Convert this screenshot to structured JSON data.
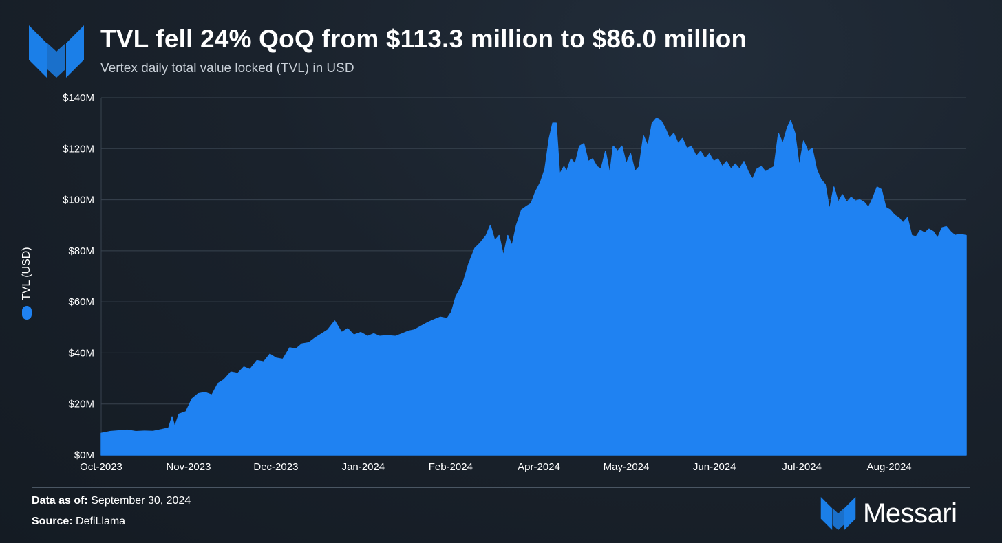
{
  "header": {
    "title": "TVL fell 24% QoQ from $113.3 million to $86.0 million",
    "subtitle": "Vertex daily total value locked (TVL) in USD"
  },
  "colors": {
    "accent": "#1f82f2",
    "logo": "#1b7fe8",
    "grid": "#38434f",
    "axis_text": "#ffffff"
  },
  "legend": {
    "series_label": "TVL (USD)"
  },
  "footer": {
    "date_label": "Data as of:",
    "date_value": "September 30, 2024",
    "source_label": "Source:",
    "source_value": "DefiLlama",
    "brand": "Messari"
  },
  "chart_data": {
    "type": "area",
    "title": "TVL fell 24% QoQ from $113.3 million to $86.0 million",
    "subtitle": "Vertex daily total value locked (TVL) in USD",
    "xlabel": "",
    "ylabel": "TVL (USD)",
    "ylim": [
      0,
      140
    ],
    "y_unit": "millions USD",
    "y_ticks": [
      0,
      20,
      40,
      60,
      80,
      100,
      120,
      140
    ],
    "y_tick_labels": [
      "$0M",
      "$20M",
      "$40M",
      "$60M",
      "$80M",
      "$100M",
      "$120M",
      "$140M"
    ],
    "x_domain": [
      0,
      1
    ],
    "x_ticks": [
      {
        "label": "Oct-2023",
        "pos": 0.0
      },
      {
        "label": "Nov-2023",
        "pos": 0.101
      },
      {
        "label": "Dec-2023",
        "pos": 0.202
      },
      {
        "label": "Jan-2024",
        "pos": 0.303
      },
      {
        "label": "Feb-2024",
        "pos": 0.404
      },
      {
        "label": "Apr-2024",
        "pos": 0.506
      },
      {
        "label": "May-2024",
        "pos": 0.607
      },
      {
        "label": "Jun-2024",
        "pos": 0.709
      },
      {
        "label": "Jul-2024",
        "pos": 0.81
      },
      {
        "label": "Aug-2024",
        "pos": 0.911
      }
    ],
    "series": [
      {
        "name": "TVL (USD)",
        "points": [
          [
            0.0,
            8.5
          ],
          [
            0.01,
            9.2
          ],
          [
            0.02,
            9.5
          ],
          [
            0.03,
            9.8
          ],
          [
            0.04,
            9.2
          ],
          [
            0.05,
            9.4
          ],
          [
            0.06,
            9.3
          ],
          [
            0.07,
            10.0
          ],
          [
            0.078,
            10.6
          ],
          [
            0.082,
            15.0
          ],
          [
            0.085,
            11.0
          ],
          [
            0.09,
            16.0
          ],
          [
            0.098,
            17.0
          ],
          [
            0.105,
            22.0
          ],
          [
            0.112,
            24.0
          ],
          [
            0.12,
            24.5
          ],
          [
            0.128,
            23.5
          ],
          [
            0.135,
            28.0
          ],
          [
            0.142,
            29.5
          ],
          [
            0.15,
            32.5
          ],
          [
            0.158,
            32.0
          ],
          [
            0.165,
            34.5
          ],
          [
            0.172,
            33.5
          ],
          [
            0.18,
            37.0
          ],
          [
            0.188,
            36.5
          ],
          [
            0.195,
            39.5
          ],
          [
            0.202,
            38.0
          ],
          [
            0.21,
            37.5
          ],
          [
            0.218,
            42.0
          ],
          [
            0.225,
            41.5
          ],
          [
            0.232,
            43.5
          ],
          [
            0.24,
            44.0
          ],
          [
            0.248,
            46.0
          ],
          [
            0.255,
            47.5
          ],
          [
            0.262,
            49.0
          ],
          [
            0.27,
            52.5
          ],
          [
            0.278,
            48.0
          ],
          [
            0.285,
            49.5
          ],
          [
            0.292,
            47.0
          ],
          [
            0.3,
            48.0
          ],
          [
            0.308,
            46.5
          ],
          [
            0.315,
            47.5
          ],
          [
            0.322,
            46.5
          ],
          [
            0.33,
            46.8
          ],
          [
            0.34,
            46.5
          ],
          [
            0.348,
            47.5
          ],
          [
            0.355,
            48.5
          ],
          [
            0.362,
            49.0
          ],
          [
            0.37,
            50.5
          ],
          [
            0.378,
            52.0
          ],
          [
            0.385,
            53.0
          ],
          [
            0.392,
            54.0
          ],
          [
            0.4,
            53.5
          ],
          [
            0.405,
            56.0
          ],
          [
            0.41,
            62.0
          ],
          [
            0.418,
            67.0
          ],
          [
            0.425,
            75.0
          ],
          [
            0.432,
            81.0
          ],
          [
            0.438,
            83.0
          ],
          [
            0.445,
            86.0
          ],
          [
            0.45,
            90.0
          ],
          [
            0.455,
            84.0
          ],
          [
            0.46,
            86.0
          ],
          [
            0.465,
            78.0
          ],
          [
            0.47,
            86.0
          ],
          [
            0.475,
            82.0
          ],
          [
            0.48,
            90.0
          ],
          [
            0.486,
            96.0
          ],
          [
            0.492,
            97.5
          ],
          [
            0.497,
            98.5
          ],
          [
            0.502,
            103.0
          ],
          [
            0.508,
            107.0
          ],
          [
            0.513,
            112.0
          ],
          [
            0.518,
            124.0
          ],
          [
            0.522,
            130.0
          ],
          [
            0.526,
            130.0
          ],
          [
            0.53,
            110.0
          ],
          [
            0.535,
            113.0
          ],
          [
            0.538,
            111.0
          ],
          [
            0.543,
            116.0
          ],
          [
            0.548,
            114.0
          ],
          [
            0.553,
            121.0
          ],
          [
            0.558,
            122.0
          ],
          [
            0.563,
            115.0
          ],
          [
            0.568,
            116.0
          ],
          [
            0.573,
            113.0
          ],
          [
            0.578,
            112.0
          ],
          [
            0.583,
            119.0
          ],
          [
            0.588,
            110.0
          ],
          [
            0.592,
            121.0
          ],
          [
            0.597,
            119.0
          ],
          [
            0.602,
            121.0
          ],
          [
            0.607,
            114.0
          ],
          [
            0.612,
            118.0
          ],
          [
            0.617,
            111.0
          ],
          [
            0.622,
            113.0
          ],
          [
            0.627,
            125.0
          ],
          [
            0.632,
            121.0
          ],
          [
            0.637,
            130.0
          ],
          [
            0.642,
            132.0
          ],
          [
            0.647,
            131.0
          ],
          [
            0.652,
            128.0
          ],
          [
            0.657,
            124.0
          ],
          [
            0.662,
            126.0
          ],
          [
            0.667,
            122.0
          ],
          [
            0.672,
            124.0
          ],
          [
            0.677,
            120.0
          ],
          [
            0.682,
            121.0
          ],
          [
            0.688,
            117.0
          ],
          [
            0.693,
            119.0
          ],
          [
            0.698,
            116.0
          ],
          [
            0.703,
            118.0
          ],
          [
            0.708,
            115.0
          ],
          [
            0.713,
            116.0
          ],
          [
            0.718,
            113.0
          ],
          [
            0.723,
            115.0
          ],
          [
            0.728,
            112.0
          ],
          [
            0.733,
            114.0
          ],
          [
            0.738,
            112.0
          ],
          [
            0.743,
            115.0
          ],
          [
            0.748,
            111.0
          ],
          [
            0.753,
            108.0
          ],
          [
            0.758,
            112.0
          ],
          [
            0.763,
            113.0
          ],
          [
            0.768,
            111.0
          ],
          [
            0.773,
            112.0
          ],
          [
            0.778,
            113.0
          ],
          [
            0.783,
            126.0
          ],
          [
            0.788,
            122.0
          ],
          [
            0.793,
            128.0
          ],
          [
            0.797,
            131.0
          ],
          [
            0.802,
            126.0
          ],
          [
            0.807,
            113.0
          ],
          [
            0.812,
            123.0
          ],
          [
            0.817,
            119.0
          ],
          [
            0.822,
            120.0
          ],
          [
            0.827,
            112.0
          ],
          [
            0.832,
            108.0
          ],
          [
            0.837,
            106.0
          ],
          [
            0.842,
            96.0
          ],
          [
            0.847,
            105.0
          ],
          [
            0.852,
            99.0
          ],
          [
            0.857,
            102.0
          ],
          [
            0.862,
            99.0
          ],
          [
            0.867,
            101.0
          ],
          [
            0.872,
            99.5
          ],
          [
            0.877,
            100.0
          ],
          [
            0.882,
            99.0
          ],
          [
            0.887,
            97.0
          ],
          [
            0.892,
            100.5
          ],
          [
            0.897,
            105.0
          ],
          [
            0.902,
            104.0
          ],
          [
            0.907,
            97.0
          ],
          [
            0.912,
            96.0
          ],
          [
            0.917,
            94.0
          ],
          [
            0.922,
            93.0
          ],
          [
            0.927,
            91.0
          ],
          [
            0.932,
            93.0
          ],
          [
            0.937,
            86.0
          ],
          [
            0.942,
            85.5
          ],
          [
            0.947,
            88.0
          ],
          [
            0.952,
            87.0
          ],
          [
            0.957,
            88.5
          ],
          [
            0.962,
            87.5
          ],
          [
            0.967,
            85.0
          ],
          [
            0.972,
            89.0
          ],
          [
            0.977,
            89.5
          ],
          [
            0.982,
            87.5
          ],
          [
            0.987,
            86.0
          ],
          [
            0.992,
            86.5
          ],
          [
            1.0,
            86.0
          ]
        ]
      }
    ]
  }
}
